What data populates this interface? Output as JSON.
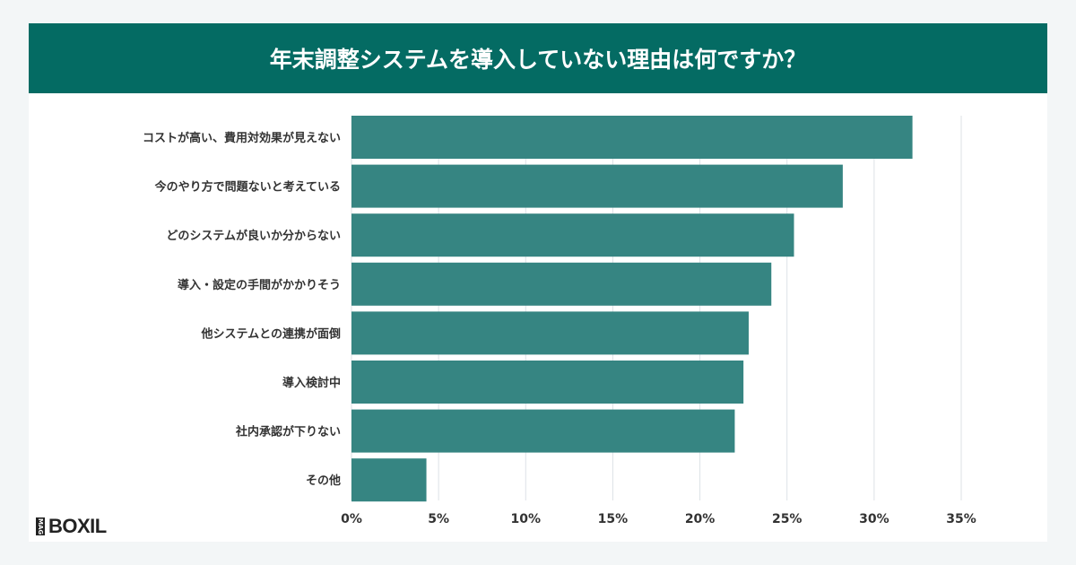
{
  "chart_data": {
    "type": "bar",
    "orientation": "horizontal",
    "title": "年末調整システムを導入していない理由は何ですか？",
    "categories": [
      "コストが高い、費用対効果が見えない",
      "今のやり方で問題ないと考えている",
      "どのシステムが良いか分からない",
      "導入・設定の手間がかかりそう",
      "他システムとの連携が面倒",
      "導入検討中",
      "社内承認が下りない",
      "その他"
    ],
    "values": [
      32.2,
      28.2,
      25.4,
      24.1,
      22.8,
      22.5,
      22.0,
      4.3
    ],
    "xlim": [
      0,
      35
    ],
    "xticks": [
      "0%",
      "5%",
      "10%",
      "15%",
      "20%",
      "25%",
      "30%",
      "35%"
    ],
    "grid": true,
    "bar_color": "#368582"
  },
  "logo": {
    "mag": "MAG",
    "text": "BOXIL"
  }
}
